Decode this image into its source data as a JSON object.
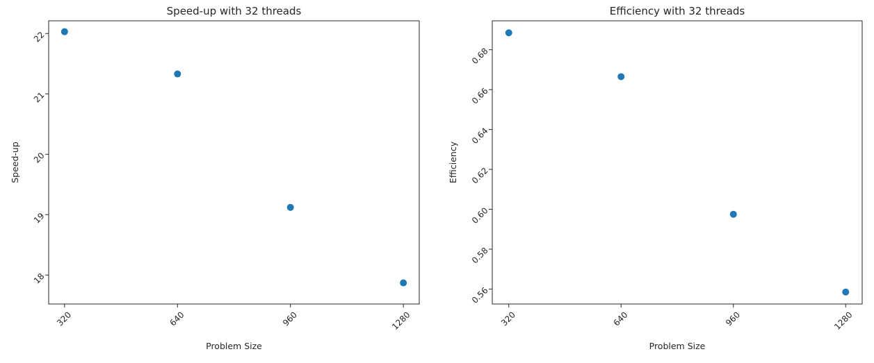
{
  "chart_data": [
    {
      "type": "scatter",
      "title": "Speed-up with 32 threads",
      "xlabel": "Problem Size",
      "ylabel": "Speed-up",
      "x": [
        320,
        640,
        960,
        1280
      ],
      "y": [
        22.03,
        21.33,
        19.12,
        17.87
      ],
      "xticks": [
        320,
        640,
        960,
        1280
      ],
      "xtick_labels": [
        "320",
        "640",
        "960",
        "1280"
      ],
      "yticks": [
        18,
        19,
        20,
        21,
        22
      ],
      "ytick_labels": [
        "18",
        "19",
        "20",
        "21",
        "22"
      ],
      "xlim": [
        275,
        1325
      ],
      "ylim": [
        17.52,
        22.21
      ],
      "tick_label_rotation": 45,
      "grid": false,
      "legend": "none",
      "color": "#1f77b4"
    },
    {
      "type": "scatter",
      "title": "Efficiency with 32 threads",
      "xlabel": "Problem Size",
      "ylabel": "Efficiency",
      "x": [
        320,
        640,
        960,
        1280
      ],
      "y": [
        0.6885,
        0.6665,
        0.5975,
        0.5585
      ],
      "xticks": [
        320,
        640,
        960,
        1280
      ],
      "xtick_labels": [
        "320",
        "640",
        "960",
        "1280"
      ],
      "yticks": [
        0.56,
        0.58,
        0.6,
        0.62,
        0.64,
        0.66,
        0.68
      ],
      "ytick_labels": [
        "0.56",
        "0.58",
        "0.60",
        "0.62",
        "0.64",
        "0.66",
        "0.68"
      ],
      "xlim": [
        273,
        1327
      ],
      "ylim": [
        0.5525,
        0.6945
      ],
      "tick_label_rotation": 45,
      "grid": false,
      "legend": "none",
      "color": "#1f77b4"
    }
  ]
}
